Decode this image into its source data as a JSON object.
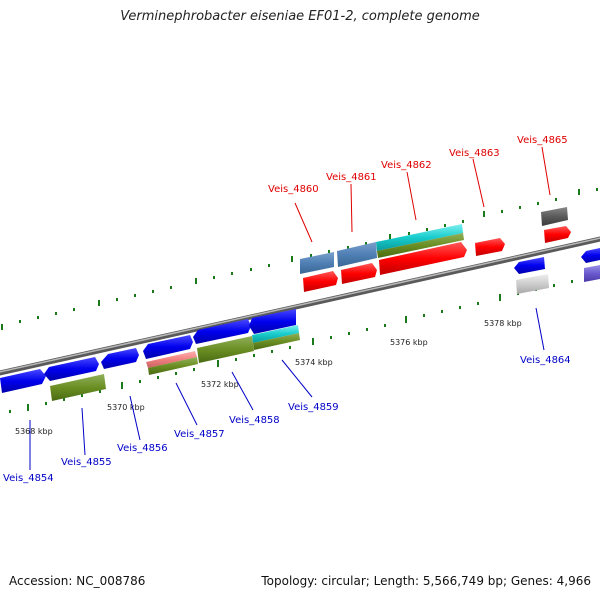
{
  "header": {
    "title": "Verminephrobacter eiseniae EF01-2, complete genome"
  },
  "footer": {
    "accession": "Accession: NC_008786",
    "stats": "Topology: circular; Length: 5,566,749 bp; Genes: 4,966"
  },
  "scale_labels": [
    "5368 kbp",
    "5370 kbp",
    "5372 kbp",
    "5374 kbp",
    "5376 kbp",
    "5378 kbp"
  ],
  "genes_forward": [
    "Veis_4860",
    "Veis_4861",
    "Veis_4862",
    "Veis_4863",
    "Veis_4865"
  ],
  "genes_reverse": [
    "Veis_4854",
    "Veis_4855",
    "Veis_4856",
    "Veis_4857",
    "Veis_4858",
    "Veis_4859",
    "Veis_4864"
  ],
  "colors": {
    "forward_label": "#e00000",
    "reverse_label": "#0000c8",
    "backbone": "#8c8c8c",
    "tick": "#1a7a1a"
  }
}
